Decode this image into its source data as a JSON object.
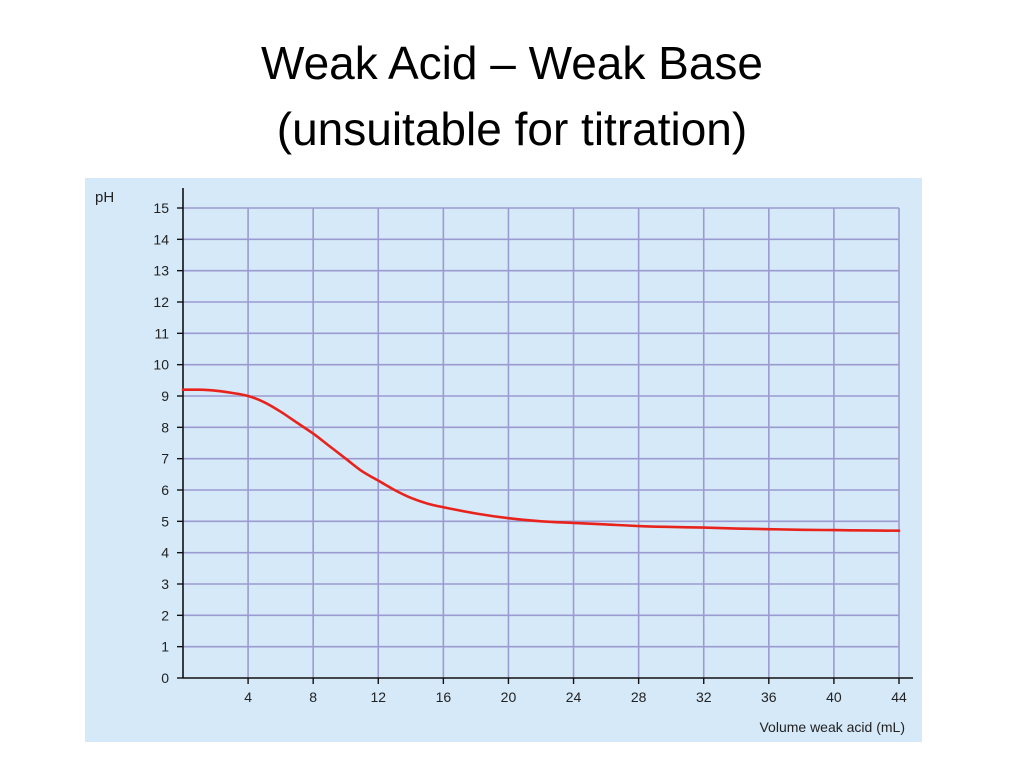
{
  "slide": {
    "title_line1": "Weak Acid – Weak Base",
    "title_line2": "(unsuitable for titration)"
  },
  "colors": {
    "panel_background": "#d6e9f8",
    "grid": "#9b9bd1",
    "curve": "#e8231c",
    "axis": "#111111"
  },
  "chart_data": {
    "type": "line",
    "title": "",
    "xlabel": "Volume weak acid (mL)",
    "ylabel": "pH",
    "xlim": [
      0,
      44
    ],
    "ylim": [
      0,
      15
    ],
    "xticks": [
      4,
      8,
      12,
      16,
      20,
      24,
      28,
      32,
      36,
      40,
      44
    ],
    "yticks": [
      0,
      1,
      2,
      3,
      4,
      5,
      6,
      7,
      8,
      9,
      10,
      11,
      12,
      13,
      14,
      15
    ],
    "grid": true,
    "legend": "none",
    "series": [
      {
        "x": [
          0,
          1,
          2,
          3,
          4,
          5,
          6,
          7,
          8,
          9,
          10,
          11,
          12,
          13,
          14,
          15,
          16,
          18,
          20,
          22,
          24,
          26,
          28,
          30,
          32,
          34,
          36,
          38,
          40,
          42,
          44
        ],
        "y": [
          9.2,
          9.2,
          9.17,
          9.1,
          9.0,
          8.8,
          8.5,
          8.15,
          7.8,
          7.4,
          7.0,
          6.6,
          6.3,
          6.0,
          5.75,
          5.57,
          5.45,
          5.25,
          5.1,
          5.0,
          4.95,
          4.9,
          4.85,
          4.82,
          4.8,
          4.77,
          4.75,
          4.73,
          4.72,
          4.71,
          4.7
        ]
      }
    ]
  }
}
